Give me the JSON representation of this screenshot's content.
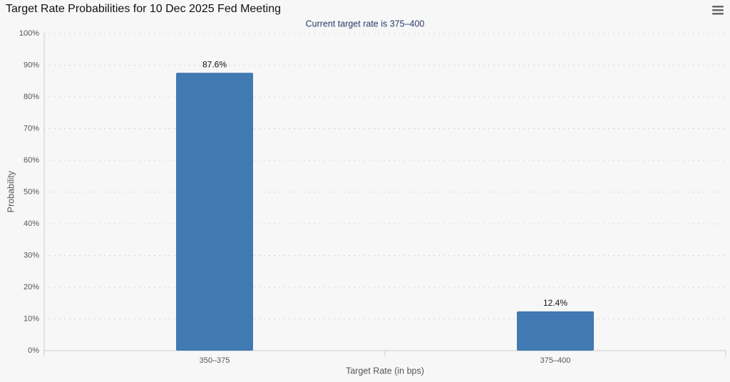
{
  "chart_data": {
    "type": "bar",
    "title": "Target Rate Probabilities for 10 Dec 2025 Fed Meeting",
    "subtitle": "Current target rate is 375–400",
    "x_label": "Target Rate (in bps)",
    "y_label": "Probability",
    "categories": [
      "350–375",
      "375–400"
    ],
    "values": [
      87.6,
      12.4
    ],
    "value_labels": [
      "87.6%",
      "12.4%"
    ],
    "color": "#4179b2",
    "ylim": [
      0,
      100
    ],
    "yticks": [
      {
        "value": 0,
        "label": "0%"
      },
      {
        "value": 10,
        "label": "10%"
      },
      {
        "value": 20,
        "label": "20%"
      },
      {
        "value": 30,
        "label": "30%"
      },
      {
        "value": 40,
        "label": "40%"
      },
      {
        "value": 50,
        "label": "50%"
      },
      {
        "value": 60,
        "label": "60%"
      },
      {
        "value": 70,
        "label": "70%"
      },
      {
        "value": 80,
        "label": "80%"
      },
      {
        "value": 90,
        "label": "90%"
      },
      {
        "value": 100,
        "label": "100%"
      }
    ],
    "grid": true
  }
}
